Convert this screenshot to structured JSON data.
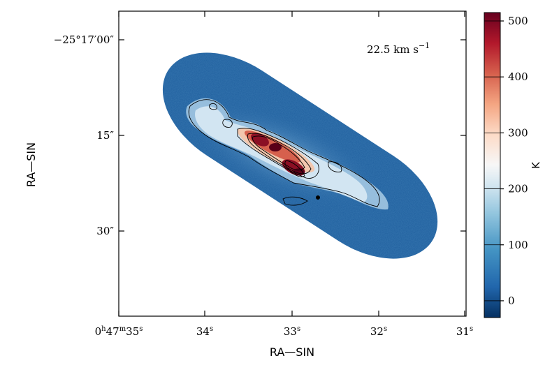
{
  "chart_data": {
    "type": "heatmap",
    "title": "",
    "xlabel": "RA—SIN",
    "ylabel": "RA—SIN",
    "x_ticks": [
      {
        "main": "0",
        "sup1": "h",
        "mid": "47",
        "sup2": "m",
        "val": "35",
        "sup3": "s"
      },
      {
        "main": "",
        "sup1": "",
        "mid": "",
        "sup2": "",
        "val": "34",
        "sup3": "s"
      },
      {
        "main": "",
        "sup1": "",
        "mid": "",
        "sup2": "",
        "val": "33",
        "sup3": "s"
      },
      {
        "main": "",
        "sup1": "",
        "mid": "",
        "sup2": "",
        "val": "32",
        "sup3": "s"
      },
      {
        "main": "",
        "sup1": "",
        "mid": "",
        "sup2": "",
        "val": "31",
        "sup3": "s"
      }
    ],
    "y_ticks": [
      "−25°17′00″",
      "15″",
      "30″"
    ],
    "annotation": "22.5 km s",
    "annotation_sup": "−1",
    "colorbar": {
      "label": "K",
      "range": [
        -30,
        515
      ],
      "ticks": [
        0,
        100,
        200,
        300,
        400,
        500
      ],
      "colormap": "RdBu_r"
    },
    "colors": {
      "background_emission": "#1f5f9e",
      "filament_low": "#cfe3f0",
      "filament_high": "#9b1023",
      "contour": "#000000"
    },
    "map_shape": "elongated ellipse oriented NW–SE",
    "contours": "yes"
  }
}
